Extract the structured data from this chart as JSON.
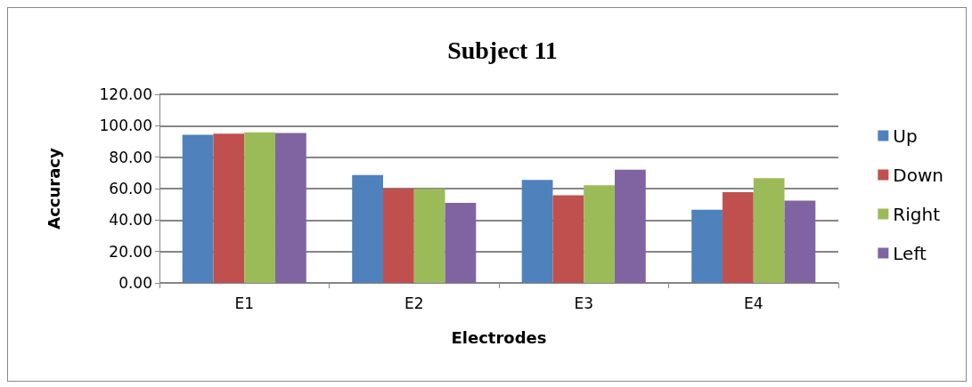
{
  "chart_data": {
    "type": "bar",
    "title": "Subject 11",
    "xlabel": "Electrodes",
    "ylabel": "Accuracy",
    "categories": [
      "E1",
      "E2",
      "E3",
      "E4"
    ],
    "series": [
      {
        "name": "Up",
        "color": "#4f81bd",
        "values": [
          94.3,
          68.6,
          65.5,
          46.5
        ]
      },
      {
        "name": "Down",
        "color": "#c0504d",
        "values": [
          95.0,
          60.0,
          55.8,
          57.7
        ]
      },
      {
        "name": "Right",
        "color": "#9bbb59",
        "values": [
          95.8,
          59.8,
          62.1,
          66.7
        ]
      },
      {
        "name": "Left",
        "color": "#8064a2",
        "values": [
          95.4,
          50.9,
          72.0,
          52.4
        ]
      }
    ],
    "ylim": [
      0,
      120
    ],
    "yticks": [
      {
        "value": 0,
        "label": "0.00"
      },
      {
        "value": 20,
        "label": "20.00"
      },
      {
        "value": 40,
        "label": "40.00"
      },
      {
        "value": 60,
        "label": "60.00"
      },
      {
        "value": 80,
        "label": "80.00"
      },
      {
        "value": 100,
        "label": "100.00"
      },
      {
        "value": 120,
        "label": "120.00"
      }
    ],
    "grid": "y",
    "legend": "right"
  }
}
